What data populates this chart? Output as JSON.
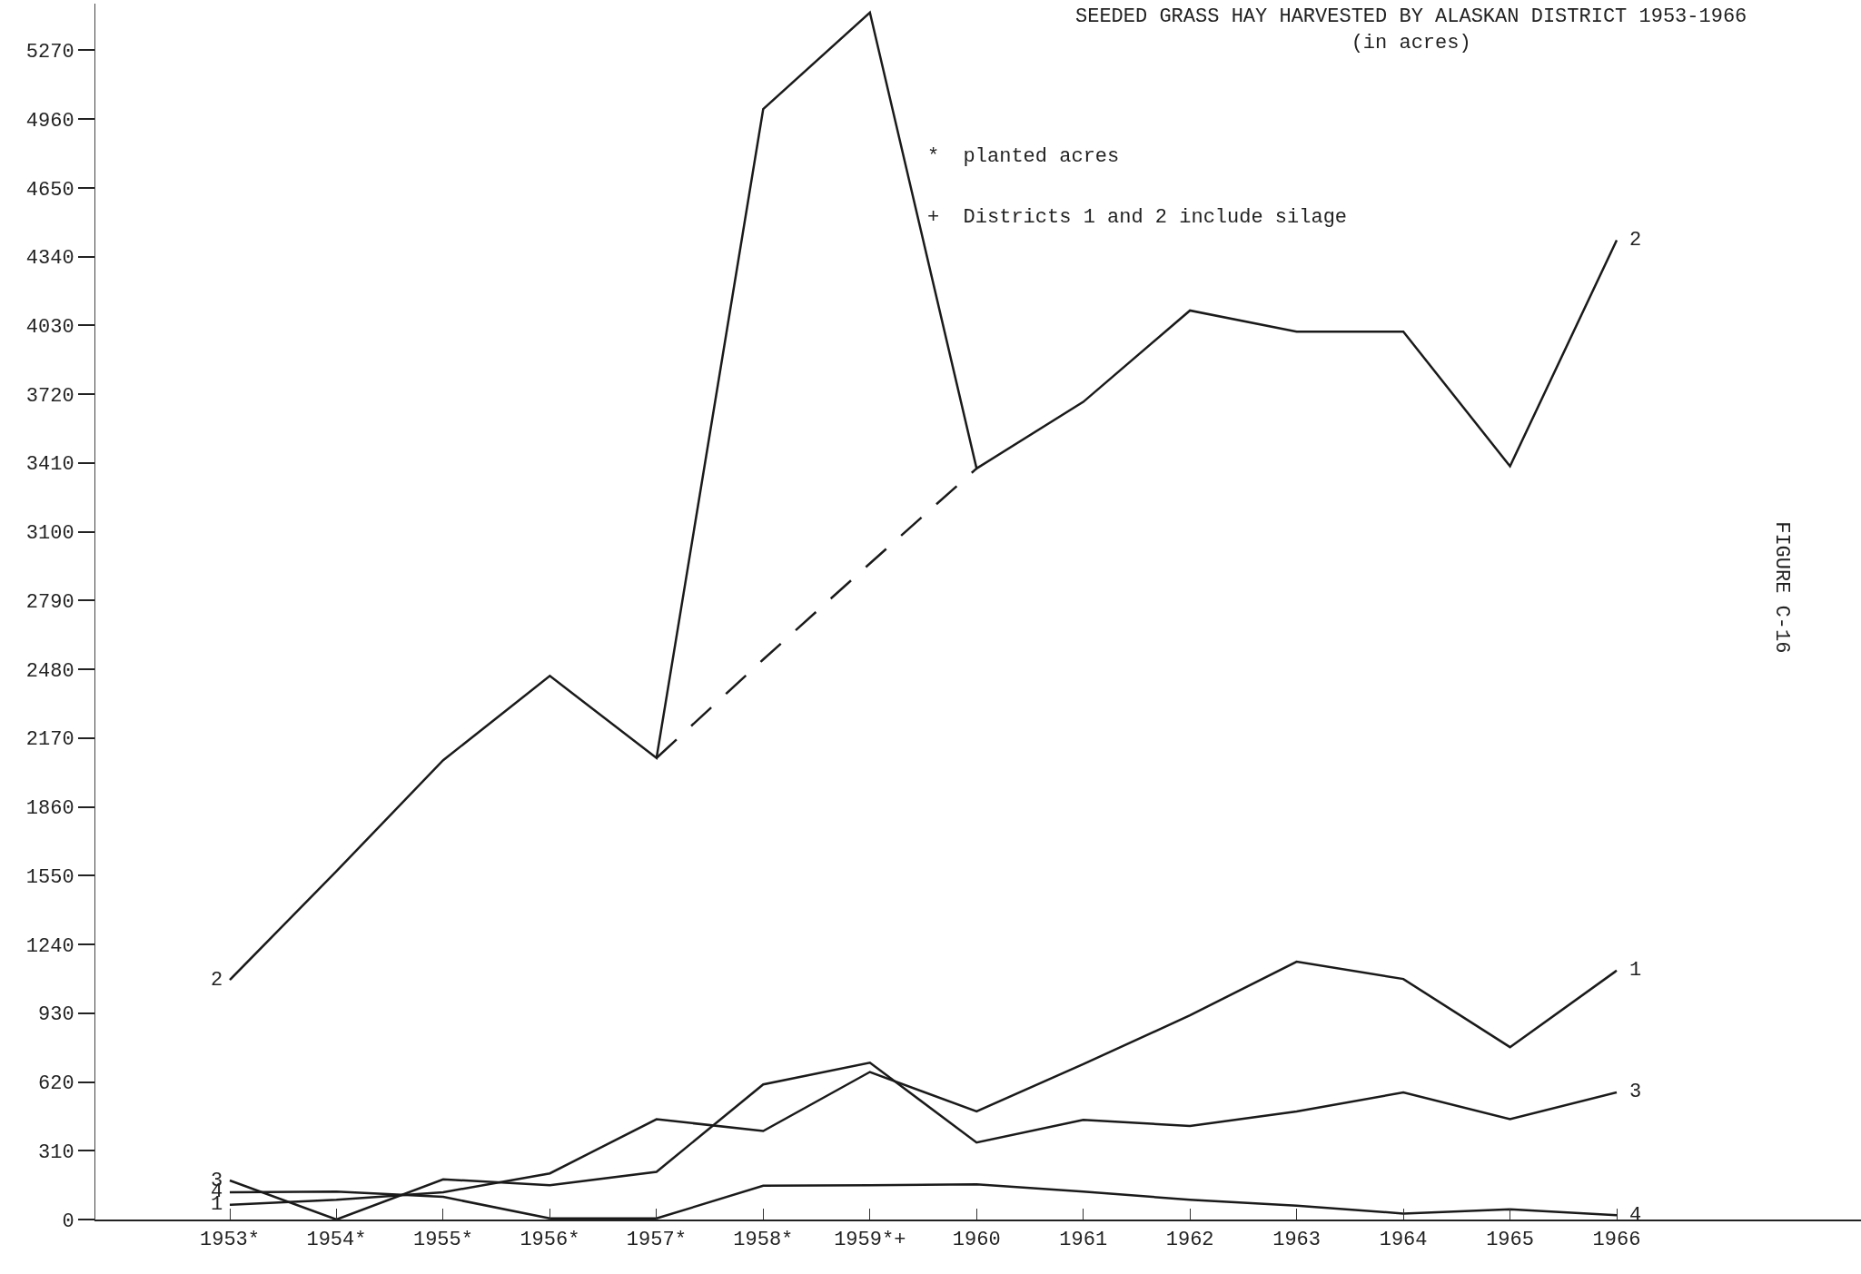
{
  "chart_data": {
    "type": "line",
    "title": "SEEDED GRASS HAY HARVESTED BY ALASKAN DISTRICT 1953-1966",
    "subtitle": "(in acres)",
    "categories": [
      "1953*",
      "1954*",
      "1955*",
      "1956*",
      "1957*",
      "1958*",
      "1959*+",
      "1960",
      "1961",
      "1962",
      "1963",
      "1964",
      "1965",
      "1966"
    ],
    "series": [
      {
        "name": "1",
        "color": "#1a1a1a",
        "values": [
          66,
          89,
          123,
          208,
          452,
          399,
          665,
          487,
          700,
          920,
          1162,
          1084,
          777,
          1122
        ]
      },
      {
        "name": "2",
        "color": "#1a1a1a",
        "values": [
          1080,
          1570,
          2070,
          2450,
          2080,
          5005,
          5440,
          3385,
          3685,
          4097,
          4002,
          4002,
          3395,
          4414
        ]
      },
      {
        "color": "#1a1a1a",
        "line_style": "dashed",
        "values": [
          null,
          null,
          null,
          null,
          2080,
          2524,
          2957,
          3385,
          null,
          null,
          null,
          null,
          null,
          null
        ]
      },
      {
        "name": "3",
        "color": "#1a1a1a",
        "values": [
          176,
          0,
          181,
          155,
          215,
          609,
          707,
          347,
          449,
          422,
          487,
          573,
          452,
          573
        ]
      },
      {
        "name": "4",
        "color": "#1a1a1a",
        "values": [
          123,
          126,
          102,
          5,
          5,
          152,
          155,
          159,
          126,
          89,
          62,
          27,
          46,
          19
        ]
      }
    ],
    "ylim": [
      0,
      5480
    ],
    "yticks": [
      0,
      310,
      620,
      930,
      1240,
      1550,
      1860,
      2170,
      2480,
      2790,
      3100,
      3410,
      3720,
      4030,
      4340,
      4650,
      4960,
      5270
    ],
    "grid": false,
    "legend": false,
    "marker": "none",
    "line_style": "solid",
    "annotations": [
      "*  planted acres",
      "+  Districts 1 and 2 include silage",
      "FIGURE C-16"
    ]
  }
}
